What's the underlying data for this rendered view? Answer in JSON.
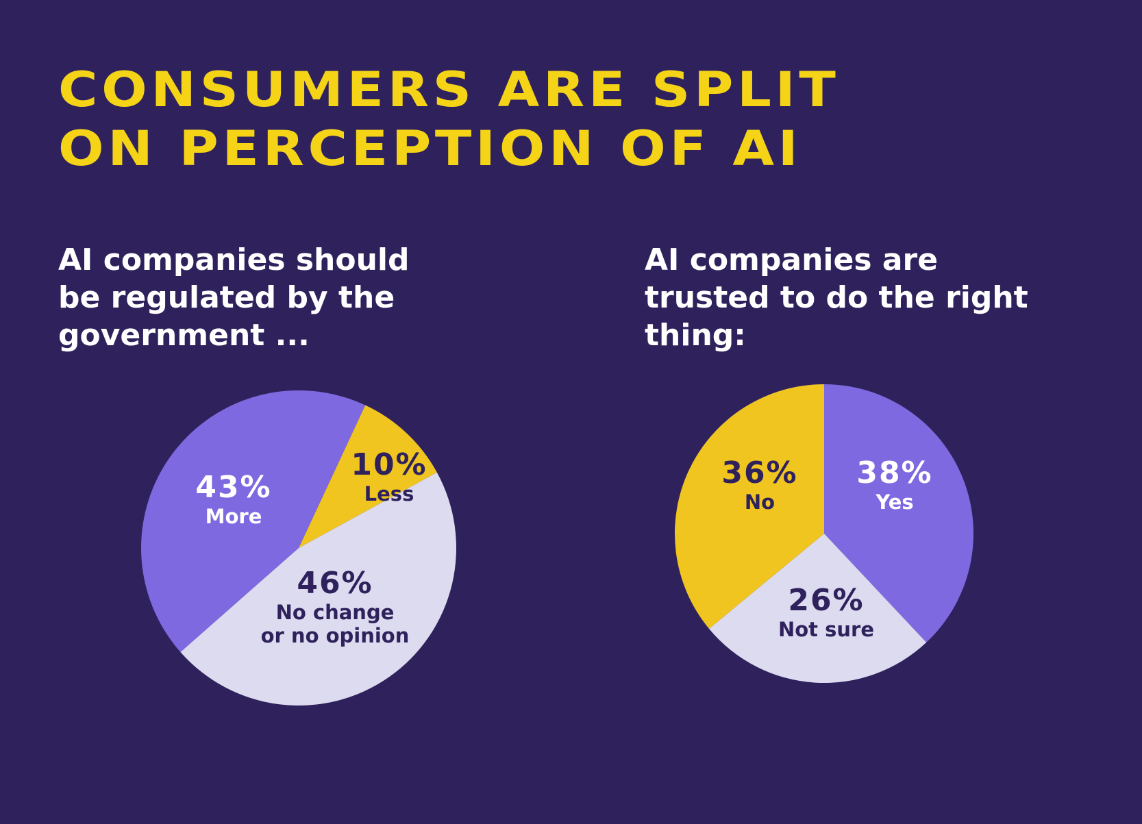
{
  "title": {
    "line1": "CONSUMERS ARE SPLIT",
    "line2": "ON PERCEPTION OF AI"
  },
  "colors": {
    "background": "#2f225c",
    "title": "#f5d418",
    "purple": "#7e69e0",
    "yellow": "#f0c520",
    "lavender": "#dcdbef",
    "dark_text": "#2f225c",
    "white_text": "#ffffff"
  },
  "chart_data": [
    {
      "type": "pie",
      "title": "AI companies should be regulated by the government ...",
      "slices": [
        {
          "pct_label": "10%",
          "name": "Less",
          "value": 10,
          "color": "#f0c520",
          "text": "#2f225c"
        },
        {
          "pct_label": "46%",
          "name": [
            "No change",
            "or no opinion"
          ],
          "value": 46,
          "color": "#dcdbef",
          "text": "#2f225c"
        },
        {
          "pct_label": "43%",
          "name": "More",
          "value": 43,
          "color": "#7e69e0",
          "text": "#ffffff"
        }
      ]
    },
    {
      "type": "pie",
      "title": "AI companies are trusted to do the right thing:",
      "slices": [
        {
          "pct_label": "38%",
          "name": "Yes",
          "value": 38,
          "color": "#7e69e0",
          "text": "#ffffff"
        },
        {
          "pct_label": "26%",
          "name": "Not sure",
          "value": 26,
          "color": "#dcdbef",
          "text": "#2f225c"
        },
        {
          "pct_label": "36%",
          "name": "No",
          "value": 36,
          "color": "#f0c520",
          "text": "#2f225c"
        }
      ]
    }
  ]
}
